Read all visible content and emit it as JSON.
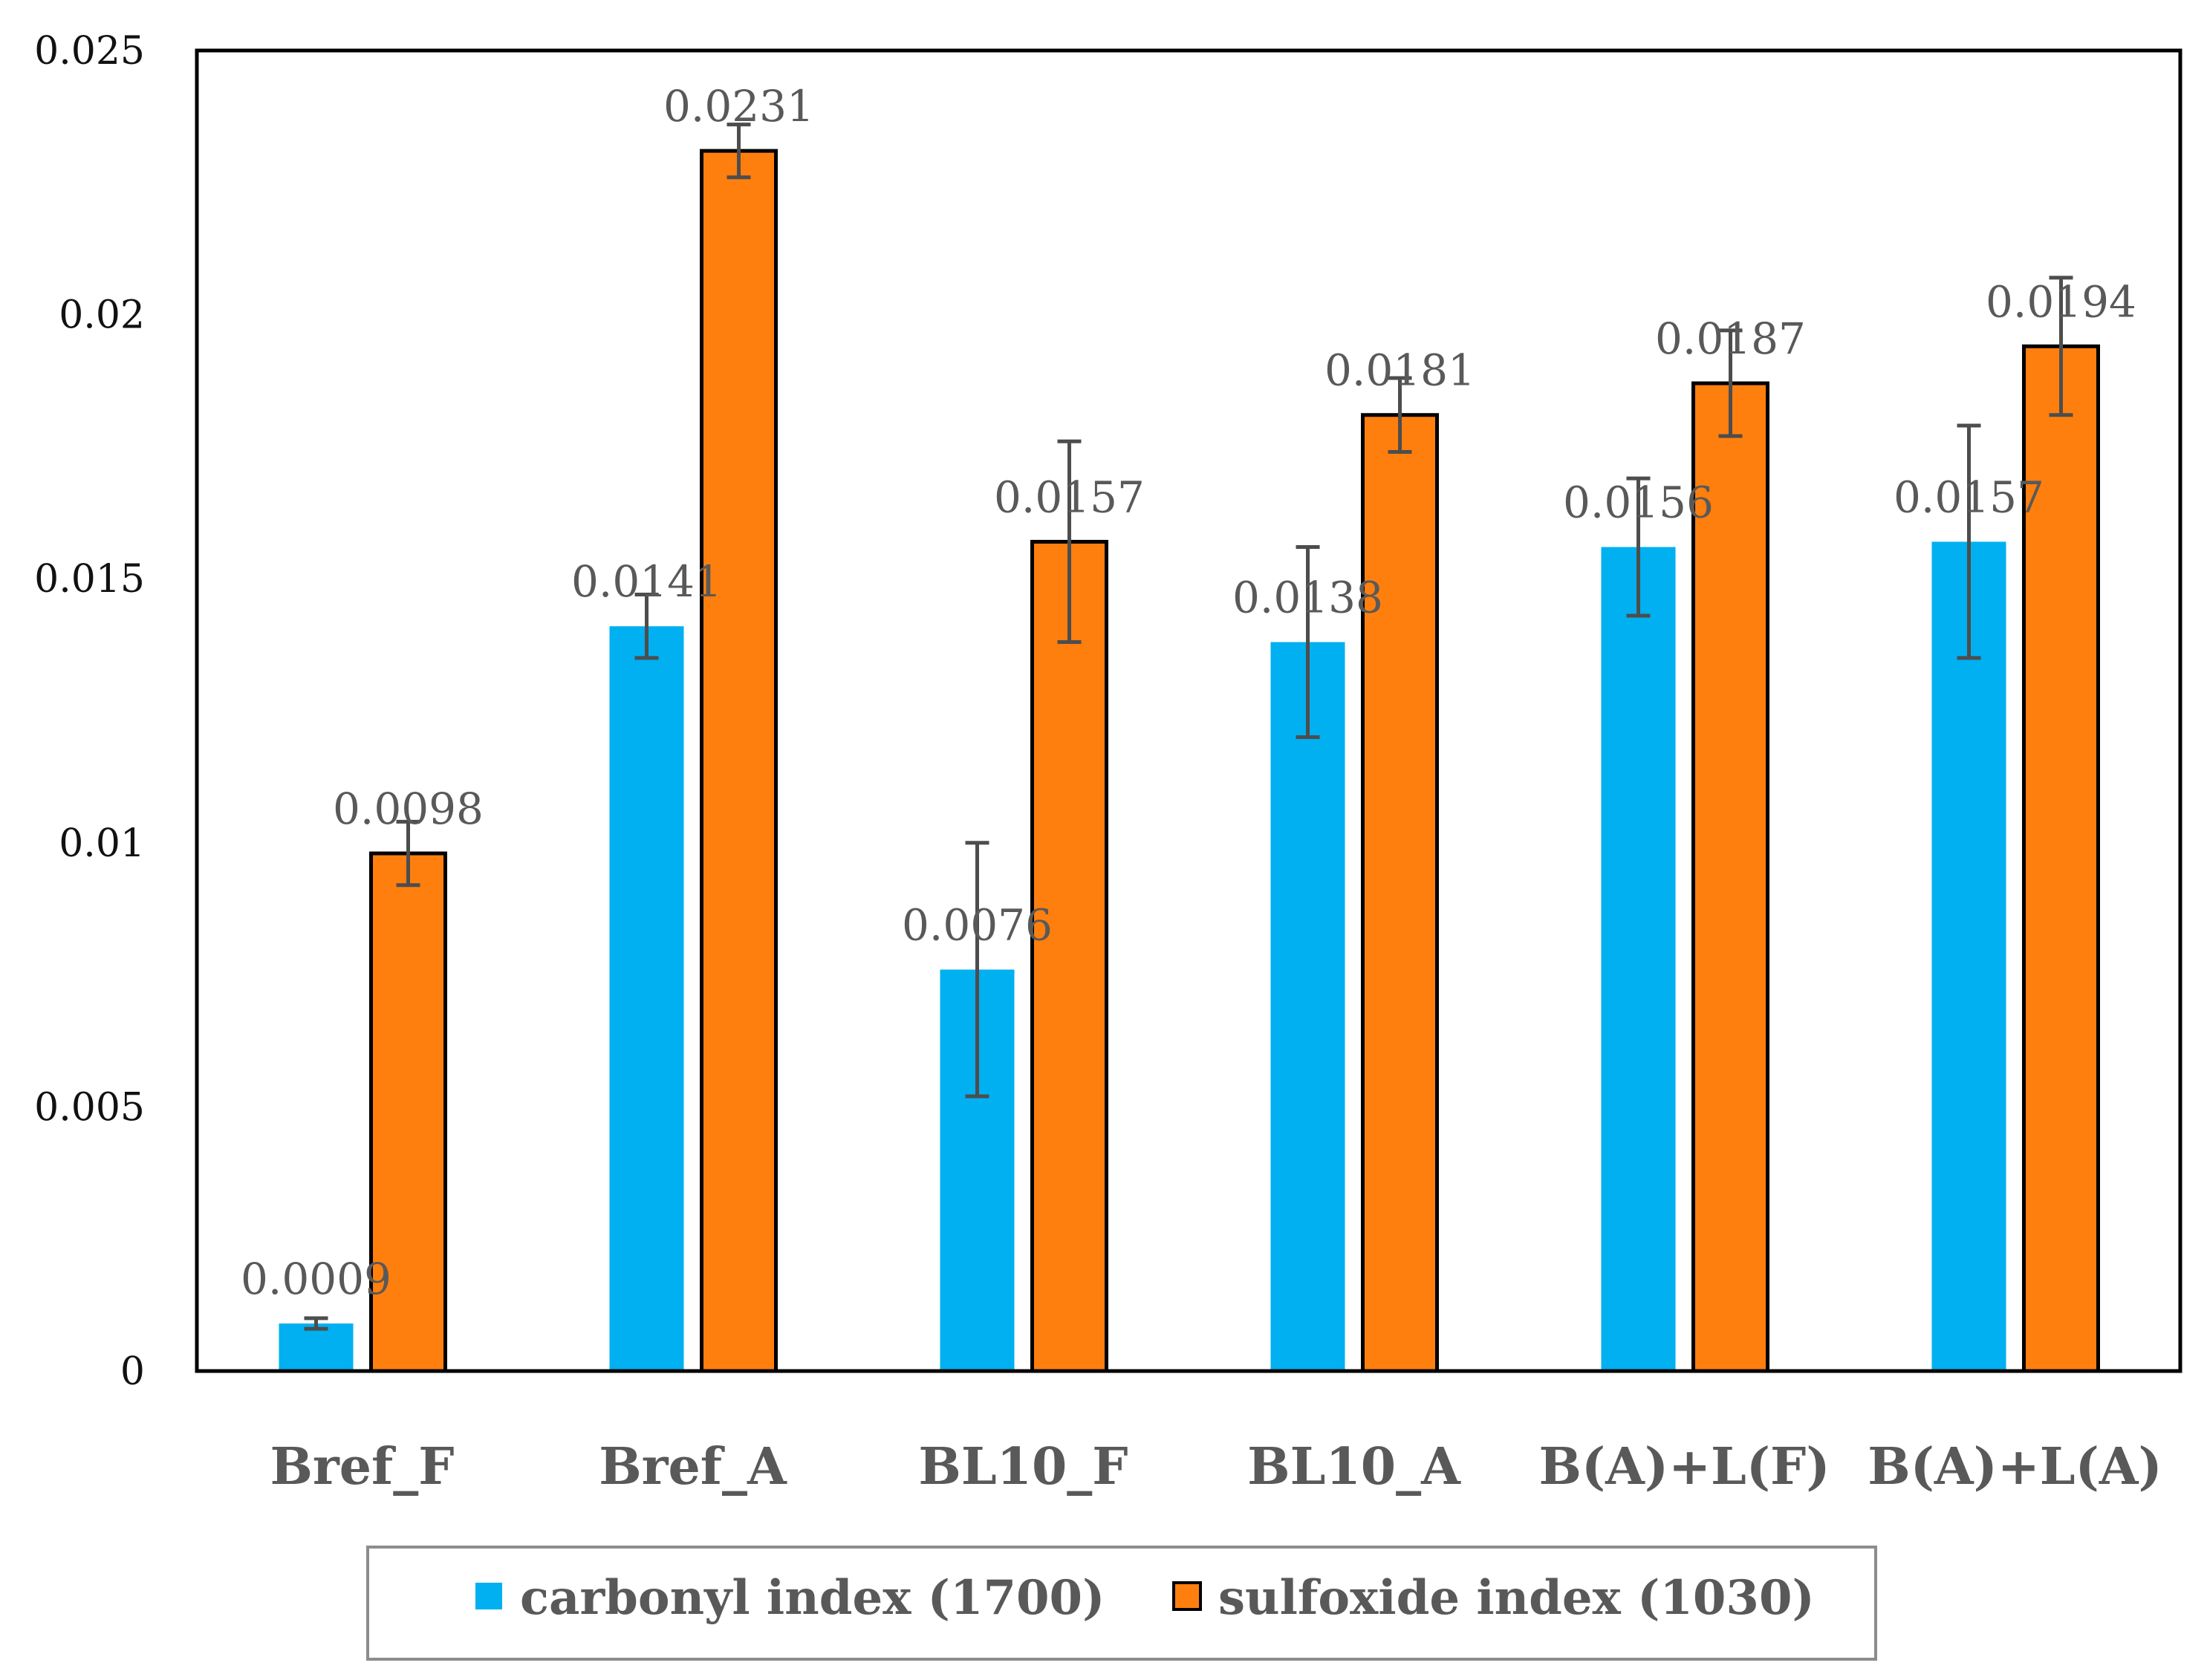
{
  "chart_data": {
    "type": "bar",
    "title": "",
    "xlabel": "",
    "ylabel": "",
    "ylim": [
      0,
      0.025
    ],
    "yticks": [
      0,
      0.005,
      0.01,
      0.015,
      0.02,
      0.025
    ],
    "ytick_labels": [
      "0",
      "0.005",
      "0.01",
      "0.015",
      "0.02",
      "0.025"
    ],
    "grid": false,
    "legend_position": "bottom",
    "categories": [
      "Bref_F",
      "Bref_A",
      "BL10_F",
      "BL10_A",
      "B(A)+L(F)",
      "B(A)+L(A)"
    ],
    "series": [
      {
        "name": "carbonyl index (1700)",
        "color": "#00B0F0",
        "values": [
          0.0009,
          0.0141,
          0.0076,
          0.0138,
          0.0156,
          0.0157
        ],
        "labels": [
          "0.0009",
          "0.0141",
          "0.0076",
          "0.0138",
          "0.0156",
          "0.0157"
        ],
        "error": [
          0.0001,
          0.0006,
          0.0024,
          0.0018,
          0.0013,
          0.0022
        ]
      },
      {
        "name": "sulfoxide index (1030)",
        "color": "#FF7F0E",
        "values": [
          0.0098,
          0.0231,
          0.0157,
          0.0181,
          0.0187,
          0.0194
        ],
        "labels": [
          "0.0098",
          "0.0231",
          "0.0157",
          "0.0181",
          "0.0187",
          "0.0194"
        ],
        "error": [
          0.0006,
          0.0005,
          0.0019,
          0.0007,
          0.001,
          0.0013
        ]
      }
    ]
  }
}
